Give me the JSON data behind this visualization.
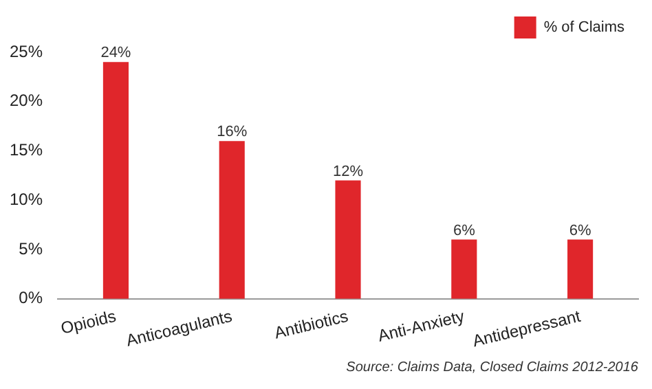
{
  "chart_data": {
    "type": "bar",
    "categories": [
      "Opioids",
      "Anticoagulants",
      "Antibiotics",
      "Anti-Anxiety",
      "Antidepressant"
    ],
    "series": [
      {
        "name": "% of Claims",
        "color": "#e0262b",
        "values": [
          24,
          16,
          12,
          6,
          6
        ],
        "value_labels": [
          "24%",
          "16%",
          "12%",
          "6%",
          "6%"
        ]
      }
    ],
    "ylim": [
      0,
      25
    ],
    "yticks": [
      {
        "value": 0,
        "label": "0%"
      },
      {
        "value": 5,
        "label": "5%"
      },
      {
        "value": 10,
        "label": "10%"
      },
      {
        "value": 15,
        "label": "15%"
      },
      {
        "value": 20,
        "label": "20%"
      },
      {
        "value": 25,
        "label": "25%"
      }
    ],
    "grid": false,
    "legend": "top right",
    "annotations": [
      "Source: Claims Data, Closed Claims 2012-2016"
    ]
  }
}
